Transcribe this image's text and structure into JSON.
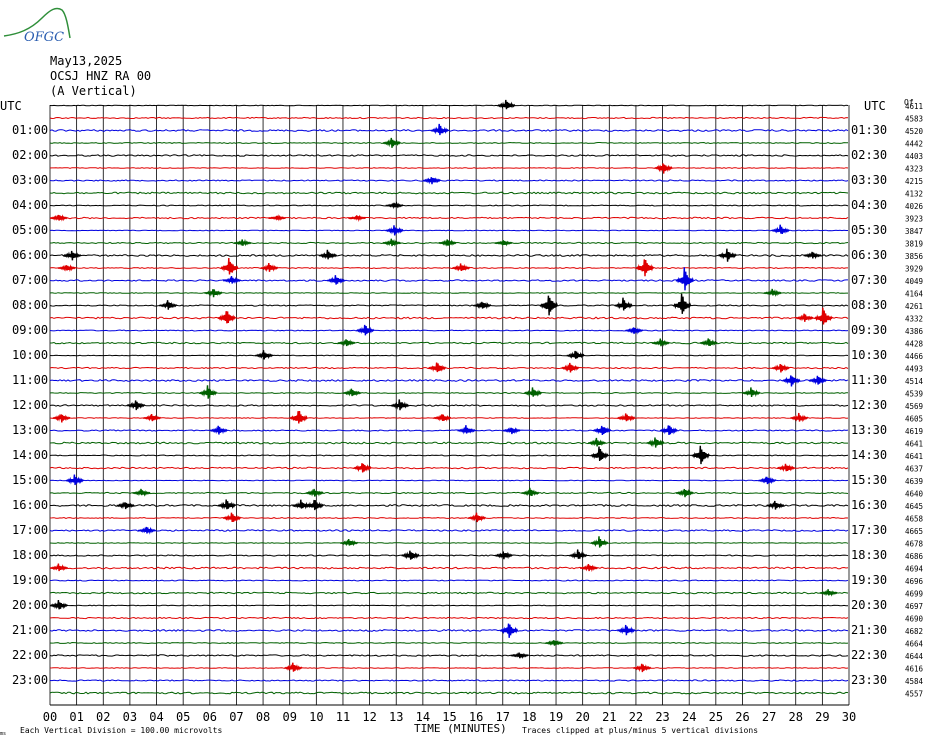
{
  "header": {
    "logo_text": "OFGC",
    "date": "May13,2025",
    "station": "OCSJ HNZ RA 00",
    "component": "(A Vertical)"
  },
  "axis": {
    "left_title": "UTC",
    "right_title": "UTC",
    "offset_title": "Of",
    "xlabel": "TIME (MINUTES)",
    "xticks": [
      "00",
      "01",
      "02",
      "03",
      "04",
      "05",
      "06",
      "07",
      "08",
      "09",
      "10",
      "11",
      "12",
      "13",
      "14",
      "15",
      "16",
      "17",
      "18",
      "19",
      "20",
      "21",
      "22",
      "23",
      "24",
      "25",
      "26",
      "27",
      "28",
      "29",
      "30"
    ],
    "left_labels": [
      "01:00",
      "02:00",
      "03:00",
      "04:00",
      "05:00",
      "06:00",
      "07:00",
      "08:00",
      "09:00",
      "10:00",
      "11:00",
      "12:00",
      "13:00",
      "14:00",
      "15:00",
      "16:00",
      "17:00",
      "18:00",
      "19:00",
      "20:00",
      "21:00",
      "22:00",
      "23:00"
    ],
    "right_labels": [
      "01:30",
      "02:30",
      "03:30",
      "04:30",
      "05:30",
      "06:30",
      "07:30",
      "08:30",
      "09:30",
      "10:30",
      "11:30",
      "12:30",
      "13:30",
      "14:30",
      "15:30",
      "16:30",
      "17:30",
      "18:30",
      "19:30",
      "20:30",
      "21:30",
      "22:30",
      "23:30"
    ]
  },
  "footer": {
    "scale_note": "Each Vertical Division =  100.00 microvolts",
    "clip_note": "Traces clipped at plus/minus 5 vertical divisions",
    "corner_mark": "ms"
  },
  "colors": {
    "trace_cycle": [
      "#000000",
      "#e00000",
      "#0000e0",
      "#006000"
    ],
    "grid": "#000000",
    "logo": "#2a5db0",
    "logo_hill": "#2f8f3a"
  },
  "chart_data": {
    "type": "helicorder",
    "minutes_per_line": 30,
    "lines": 48,
    "xlim": [
      0,
      30
    ],
    "offsets": [
      "4611",
      "4583",
      "4520",
      "4442",
      "4403",
      "4323",
      "4215",
      "4132",
      "4026",
      "3923",
      "3847",
      "3819",
      "3856",
      "3929",
      "4049",
      "4164",
      "4261",
      "4332",
      "4386",
      "4428",
      "4466",
      "4493",
      "4514",
      "4539",
      "4569",
      "4605",
      "4619",
      "4641",
      "4641",
      "4637",
      "4639",
      "4640",
      "4645",
      "4658",
      "4665",
      "4678",
      "4686",
      "4694",
      "4696",
      "4699",
      "4697",
      "4690",
      "4682",
      "4664",
      "4644",
      "4616",
      "4584",
      "4557"
    ],
    "events": [
      {
        "line": 0,
        "minute": 17.1,
        "amp": 8
      },
      {
        "line": 2,
        "minute": 14.6,
        "amp": 8
      },
      {
        "line": 3,
        "minute": 12.8,
        "amp": 7
      },
      {
        "line": 5,
        "minute": 23.0,
        "amp": 8
      },
      {
        "line": 6,
        "minute": 14.3,
        "amp": 6
      },
      {
        "line": 8,
        "minute": 12.9,
        "amp": 4
      },
      {
        "line": 9,
        "minute": 0.3,
        "amp": 5
      },
      {
        "line": 9,
        "minute": 8.5,
        "amp": 3
      },
      {
        "line": 9,
        "minute": 11.5,
        "amp": 3
      },
      {
        "line": 10,
        "minute": 12.9,
        "amp": 7
      },
      {
        "line": 10,
        "minute": 27.4,
        "amp": 7
      },
      {
        "line": 11,
        "minute": 7.2,
        "amp": 4
      },
      {
        "line": 11,
        "minute": 12.8,
        "amp": 5
      },
      {
        "line": 11,
        "minute": 14.9,
        "amp": 5
      },
      {
        "line": 11,
        "minute": 17.0,
        "amp": 4
      },
      {
        "line": 12,
        "minute": 0.8,
        "amp": 7
      },
      {
        "line": 12,
        "minute": 10.4,
        "amp": 7
      },
      {
        "line": 12,
        "minute": 25.4,
        "amp": 9
      },
      {
        "line": 12,
        "minute": 28.6,
        "amp": 5
      },
      {
        "line": 13,
        "minute": 0.6,
        "amp": 5
      },
      {
        "line": 13,
        "minute": 6.7,
        "amp": 14
      },
      {
        "line": 13,
        "minute": 8.2,
        "amp": 6
      },
      {
        "line": 13,
        "minute": 15.4,
        "amp": 6
      },
      {
        "line": 13,
        "minute": 22.3,
        "amp": 14
      },
      {
        "line": 14,
        "minute": 10.7,
        "amp": 7
      },
      {
        "line": 14,
        "minute": 6.8,
        "amp": 5
      },
      {
        "line": 14,
        "minute": 23.8,
        "amp": 16
      },
      {
        "line": 15,
        "minute": 6.1,
        "amp": 6
      },
      {
        "line": 15,
        "minute": 27.1,
        "amp": 5
      },
      {
        "line": 16,
        "minute": 4.4,
        "amp": 6
      },
      {
        "line": 16,
        "minute": 16.2,
        "amp": 6
      },
      {
        "line": 16,
        "minute": 18.7,
        "amp": 16
      },
      {
        "line": 16,
        "minute": 21.5,
        "amp": 9
      },
      {
        "line": 16,
        "minute": 23.7,
        "amp": 16
      },
      {
        "line": 17,
        "minute": 6.6,
        "amp": 12
      },
      {
        "line": 17,
        "minute": 29.0,
        "amp": 14
      },
      {
        "line": 17,
        "minute": 28.3,
        "amp": 6
      },
      {
        "line": 18,
        "minute": 11.8,
        "amp": 8
      },
      {
        "line": 18,
        "minute": 21.9,
        "amp": 5
      },
      {
        "line": 19,
        "minute": 11.1,
        "amp": 5
      },
      {
        "line": 19,
        "minute": 22.9,
        "amp": 5
      },
      {
        "line": 19,
        "minute": 24.7,
        "amp": 6
      },
      {
        "line": 20,
        "minute": 8.0,
        "amp": 6
      },
      {
        "line": 20,
        "minute": 19.7,
        "amp": 7
      },
      {
        "line": 21,
        "minute": 14.5,
        "amp": 8
      },
      {
        "line": 21,
        "minute": 19.5,
        "amp": 7
      },
      {
        "line": 21,
        "minute": 27.4,
        "amp": 7
      },
      {
        "line": 22,
        "minute": 27.8,
        "amp": 9
      },
      {
        "line": 22,
        "minute": 28.8,
        "amp": 7
      },
      {
        "line": 23,
        "minute": 5.9,
        "amp": 9
      },
      {
        "line": 23,
        "minute": 11.3,
        "amp": 6
      },
      {
        "line": 23,
        "minute": 18.1,
        "amp": 8
      },
      {
        "line": 23,
        "minute": 26.3,
        "amp": 7
      },
      {
        "line": 24,
        "minute": 3.2,
        "amp": 7
      },
      {
        "line": 24,
        "minute": 13.1,
        "amp": 8
      },
      {
        "line": 25,
        "minute": 0.4,
        "amp": 6
      },
      {
        "line": 25,
        "minute": 3.8,
        "amp": 5
      },
      {
        "line": 25,
        "minute": 9.3,
        "amp": 12
      },
      {
        "line": 25,
        "minute": 14.7,
        "amp": 6
      },
      {
        "line": 25,
        "minute": 21.6,
        "amp": 7
      },
      {
        "line": 25,
        "minute": 28.1,
        "amp": 6
      },
      {
        "line": 26,
        "minute": 6.3,
        "amp": 6
      },
      {
        "line": 26,
        "minute": 15.6,
        "amp": 6
      },
      {
        "line": 26,
        "minute": 17.3,
        "amp": 5
      },
      {
        "line": 26,
        "minute": 20.7,
        "amp": 8
      },
      {
        "line": 26,
        "minute": 23.2,
        "amp": 8
      },
      {
        "line": 27,
        "minute": 22.7,
        "amp": 8
      },
      {
        "line": 27,
        "minute": 20.5,
        "amp": 6
      },
      {
        "line": 28,
        "minute": 20.6,
        "amp": 11
      },
      {
        "line": 28,
        "minute": 24.4,
        "amp": 14
      },
      {
        "line": 29,
        "minute": 11.7,
        "amp": 8
      },
      {
        "line": 29,
        "minute": 27.6,
        "amp": 6
      },
      {
        "line": 30,
        "minute": 0.9,
        "amp": 8
      },
      {
        "line": 30,
        "minute": 26.9,
        "amp": 6
      },
      {
        "line": 31,
        "minute": 3.4,
        "amp": 5
      },
      {
        "line": 31,
        "minute": 9.9,
        "amp": 6
      },
      {
        "line": 31,
        "minute": 18.0,
        "amp": 6
      },
      {
        "line": 31,
        "minute": 23.8,
        "amp": 6
      },
      {
        "line": 32,
        "minute": 2.8,
        "amp": 6
      },
      {
        "line": 32,
        "minute": 6.6,
        "amp": 8
      },
      {
        "line": 32,
        "minute": 9.4,
        "amp": 7
      },
      {
        "line": 32,
        "minute": 9.9,
        "amp": 9
      },
      {
        "line": 32,
        "minute": 27.2,
        "amp": 6
      },
      {
        "line": 33,
        "minute": 6.8,
        "amp": 8
      },
      {
        "line": 33,
        "minute": 16.0,
        "amp": 6
      },
      {
        "line": 34,
        "minute": 3.6,
        "amp": 5
      },
      {
        "line": 35,
        "minute": 11.2,
        "amp": 5
      },
      {
        "line": 35,
        "minute": 20.6,
        "amp": 8
      },
      {
        "line": 36,
        "minute": 13.5,
        "amp": 8
      },
      {
        "line": 36,
        "minute": 17.0,
        "amp": 6
      },
      {
        "line": 36,
        "minute": 19.8,
        "amp": 7
      },
      {
        "line": 37,
        "minute": 20.2,
        "amp": 5
      },
      {
        "line": 37,
        "minute": 0.3,
        "amp": 5
      },
      {
        "line": 39,
        "minute": 29.2,
        "amp": 5
      },
      {
        "line": 40,
        "minute": 0.3,
        "amp": 7
      },
      {
        "line": 42,
        "minute": 17.2,
        "amp": 12
      },
      {
        "line": 42,
        "minute": 21.6,
        "amp": 8
      },
      {
        "line": 43,
        "minute": 18.9,
        "amp": 5
      },
      {
        "line": 44,
        "minute": 17.6,
        "amp": 4
      },
      {
        "line": 45,
        "minute": 9.1,
        "amp": 7
      },
      {
        "line": 45,
        "minute": 22.2,
        "amp": 6
      }
    ]
  }
}
